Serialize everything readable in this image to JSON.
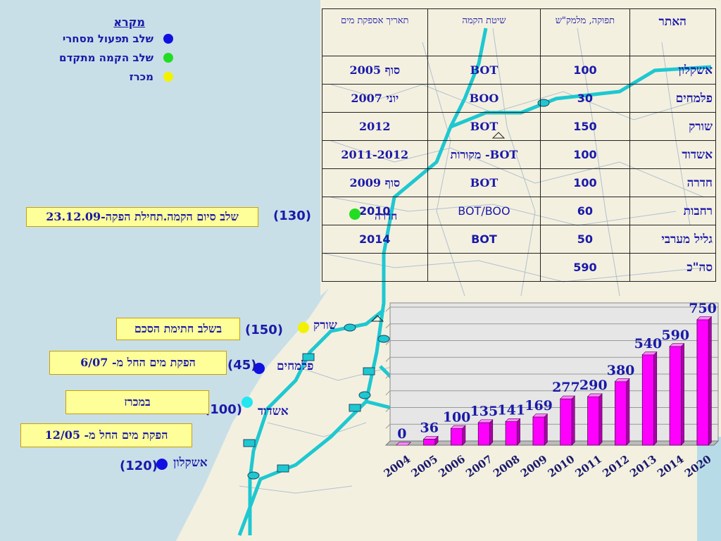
{
  "legend": {
    "title": "מקרא",
    "items": [
      {
        "label": "שלב תפעול מסחרי",
        "color": "#1010e0"
      },
      {
        "label": "שלב הקמה מתקדם",
        "color": "#22dd22"
      },
      {
        "label": "מכרז",
        "color": "#f2f200"
      }
    ]
  },
  "table": {
    "headers": [
      "האתר",
      "תפוקה, מלמק\"ש",
      "שיטת הקמה",
      "תאריך אספקת מים"
    ],
    "rows": [
      [
        "אשקלון",
        "100",
        "BOT",
        "סוף 2005"
      ],
      [
        "פלמחים",
        "30",
        "BOO",
        "יוני 2007"
      ],
      [
        "שורק",
        "150",
        "BOT",
        "2012"
      ],
      [
        "אשדוד",
        "100",
        "BOT- מקורות",
        "2011-2012"
      ],
      [
        "חדרה",
        "100",
        "BOT",
        "סוף 2009"
      ],
      [
        "רחבות",
        "60",
        "BOT/BOO",
        "2010"
      ],
      [
        "גליל מערבי",
        "50",
        "BOT",
        "2014"
      ],
      [
        "סה\"כ",
        "590",
        "",
        ""
      ]
    ]
  },
  "map": {
    "hadera_label": "חדרה",
    "sites": [
      {
        "name": "שורק",
        "num": "(150)",
        "callout": "בשלב חתימת הסכם",
        "dot_color": "#f2f200"
      },
      {
        "name": "פלמחים",
        "num": "(45)",
        "callout": "הפקת מים החל  מ- 6/07",
        "dot_color": "#1010e0"
      },
      {
        "name": "אשדוד",
        "num": "(100)",
        "callout": "במכרז",
        "dot_color": "#22e6f0"
      },
      {
        "name": "אשקלון",
        "num": "(120)",
        "callout": "הפקת מים החל  מ- 12/05",
        "dot_color": "#1010e0"
      }
    ],
    "hadera_callout": "שלב סיום הקמה.תחילת הפקה-23.12.09",
    "hadera_num": "(130)"
  },
  "chart_data": {
    "type": "bar",
    "categories": [
      "2004",
      "2005",
      "2006",
      "2007",
      "2008",
      "2009",
      "2010",
      "2011",
      "2012",
      "2013",
      "2014",
      "2020"
    ],
    "values": [
      0,
      36,
      100,
      135,
      141,
      169,
      277,
      290,
      380,
      540,
      590,
      750
    ],
    "title": "",
    "xlabel": "",
    "ylabel": "",
    "ylim": [
      0,
      800
    ],
    "bar_color": "#ff00ff",
    "label_color": "#1a1aa8",
    "grid": true
  },
  "colors": {
    "sea": "#c9dfe8",
    "land": "#f4f0e0",
    "pipeline": "#1ec8d0"
  }
}
